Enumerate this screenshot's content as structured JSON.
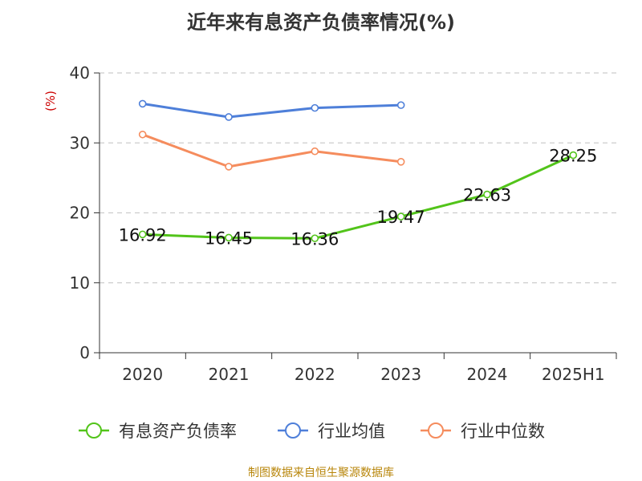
{
  "title": "近年来有息资产负债率情况(%)",
  "footer": "制图数据来自恒生聚源数据库",
  "chart_data": {
    "type": "line",
    "title": "近年来有息资产负债率情况(%)",
    "ylabel": "(%)",
    "xlabel": "",
    "categories": [
      "2020",
      "2021",
      "2022",
      "2023",
      "2024",
      "2025H1"
    ],
    "ylim": [
      0,
      40
    ],
    "yticks": [
      0,
      10,
      20,
      30,
      40
    ],
    "grid": true,
    "legend_position": "bottom",
    "series": [
      {
        "name": "有息资产负债率",
        "color": "#52c41a",
        "values": [
          16.92,
          16.45,
          16.36,
          19.47,
          22.63,
          28.25
        ],
        "labels": [
          "16.92",
          "16.45",
          "16.36",
          "19.47",
          "22.63",
          "28.25"
        ]
      },
      {
        "name": "行业均值",
        "color": "#4e7fd9",
        "values": [
          35.6,
          33.7,
          35.0,
          35.4,
          null,
          null
        ]
      },
      {
        "name": "行业中位数",
        "color": "#f58c5d",
        "values": [
          31.2,
          26.6,
          28.8,
          27.3,
          null,
          null
        ]
      }
    ]
  }
}
